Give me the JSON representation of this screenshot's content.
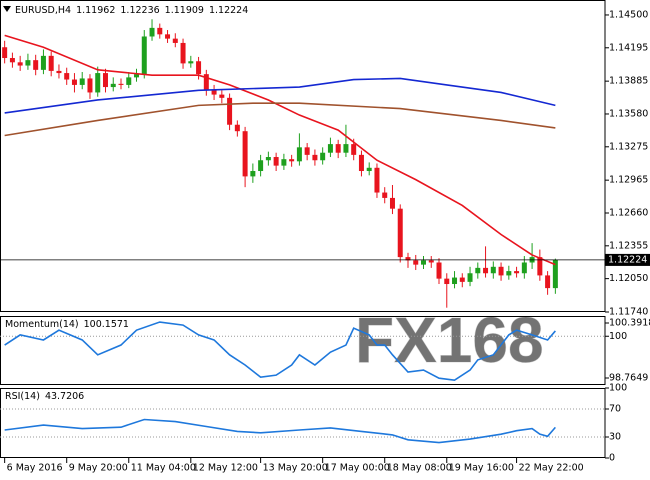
{
  "chart_data": [
    {
      "type": "candlestick",
      "title": "EURUSD,H4",
      "open": [
        1.142,
        1.141,
        1.1406,
        1.1403,
        1.1408,
        1.1399,
        1.1412,
        1.1398,
        1.1396,
        1.139,
        1.1385,
        1.1391,
        1.1378,
        1.1396,
        1.1383,
        1.1386,
        1.1385,
        1.1392,
        1.1395,
        1.143,
        1.1438,
        1.1432,
        1.1428,
        1.1424,
        1.1405,
        1.1407,
        1.1395,
        1.138,
        1.1376,
        1.1373,
        1.1348,
        1.1342,
        1.13,
        1.1305,
        1.1315,
        1.1318,
        1.131,
        1.1316,
        1.1314,
        1.1327,
        1.132,
        1.1315,
        1.1322,
        1.133,
        1.1322,
        1.133,
        1.132,
        1.1305,
        1.1308,
        1.1285,
        1.128,
        1.127,
        1.1225,
        1.1222,
        1.1218,
        1.1222,
        1.122,
        1.1205,
        1.12,
        1.1206,
        1.1202,
        1.121,
        1.1215,
        1.121,
        1.1216,
        1.1208,
        1.1212,
        1.121,
        1.122,
        1.1225,
        1.1208,
        1.11962
      ],
      "high": [
        1.1426,
        1.1415,
        1.1412,
        1.1414,
        1.1413,
        1.1418,
        1.1416,
        1.1404,
        1.1401,
        1.1396,
        1.1397,
        1.1395,
        1.1402,
        1.14,
        1.1392,
        1.1391,
        1.1397,
        1.14,
        1.1436,
        1.1446,
        1.1442,
        1.1436,
        1.1433,
        1.1428,
        1.1412,
        1.1411,
        1.1399,
        1.1385,
        1.138,
        1.1377,
        1.1352,
        1.1346,
        1.1312,
        1.132,
        1.1323,
        1.1322,
        1.1321,
        1.132,
        1.134,
        1.1331,
        1.1325,
        1.1327,
        1.1336,
        1.1334,
        1.1348,
        1.1335,
        1.1324,
        1.1313,
        1.1312,
        1.129,
        1.1292,
        1.1274,
        1.1229,
        1.1227,
        1.1226,
        1.1226,
        1.1224,
        1.121,
        1.1212,
        1.121,
        1.1216,
        1.122,
        1.1235,
        1.1221,
        1.122,
        1.1217,
        1.1216,
        1.1226,
        1.1238,
        1.1232,
        1.1212,
        1.12236
      ],
      "low": [
        1.1405,
        1.1401,
        1.1398,
        1.1399,
        1.1394,
        1.1395,
        1.1393,
        1.1391,
        1.1385,
        1.1378,
        1.1381,
        1.1372,
        1.1374,
        1.1378,
        1.1379,
        1.1381,
        1.1382,
        1.1388,
        1.1391,
        1.1426,
        1.1428,
        1.1424,
        1.142,
        1.14,
        1.1401,
        1.139,
        1.1375,
        1.1371,
        1.1368,
        1.1343,
        1.1337,
        1.129,
        1.1294,
        1.13,
        1.131,
        1.1305,
        1.1306,
        1.1309,
        1.131,
        1.1315,
        1.131,
        1.1311,
        1.1318,
        1.1317,
        1.1318,
        1.1315,
        1.13,
        1.1301,
        1.128,
        1.1275,
        1.1265,
        1.122,
        1.1215,
        1.1213,
        1.1214,
        1.1215,
        1.12,
        1.1178,
        1.1196,
        1.1197,
        1.1198,
        1.1205,
        1.1206,
        1.1205,
        1.1203,
        1.1204,
        1.1206,
        1.1205,
        1.1214,
        1.1203,
        1.119,
        1.11909
      ],
      "close": [
        1.141,
        1.1406,
        1.1403,
        1.1408,
        1.1399,
        1.1412,
        1.1398,
        1.1396,
        1.139,
        1.1385,
        1.1391,
        1.1378,
        1.1396,
        1.1383,
        1.1386,
        1.1385,
        1.1392,
        1.1395,
        1.143,
        1.1438,
        1.1432,
        1.1428,
        1.1424,
        1.1405,
        1.1407,
        1.1395,
        1.138,
        1.1376,
        1.1373,
        1.1348,
        1.1342,
        1.13,
        1.1305,
        1.1315,
        1.1318,
        1.131,
        1.1316,
        1.1314,
        1.1327,
        1.132,
        1.1315,
        1.1322,
        1.133,
        1.1322,
        1.133,
        1.132,
        1.1305,
        1.1308,
        1.1285,
        1.128,
        1.127,
        1.1225,
        1.1222,
        1.1218,
        1.1222,
        1.122,
        1.1205,
        1.12,
        1.1206,
        1.1202,
        1.121,
        1.1215,
        1.121,
        1.1216,
        1.1208,
        1.1212,
        1.121,
        1.122,
        1.1225,
        1.1208,
        1.11962,
        1.12224
      ],
      "up_color": "#1ea01e",
      "down_color": "#e8141e",
      "lines": [
        {
          "color": "#e8141e",
          "x": [
            0,
            5,
            12,
            19,
            25,
            29,
            34,
            38,
            43,
            48,
            53,
            59,
            64,
            68,
            71
          ],
          "values": [
            1.1431,
            1.142,
            1.1399,
            1.1394,
            1.1394,
            1.1385,
            1.1371,
            1.1357,
            1.1343,
            1.1315,
            1.1297,
            1.1273,
            1.1246,
            1.1227,
            1.1218
          ]
        },
        {
          "color": "#1428d2",
          "x": [
            0,
            12,
            25,
            38,
            45,
            51,
            57,
            64,
            71
          ],
          "values": [
            1.1359,
            1.1371,
            1.138,
            1.1383,
            1.139,
            1.1391,
            1.1385,
            1.1378,
            1.1366
          ]
        },
        {
          "color": "#a0522d",
          "x": [
            0,
            12,
            25,
            32,
            38,
            51,
            64,
            71
          ],
          "values": [
            1.1338,
            1.1352,
            1.1366,
            1.1368,
            1.1368,
            1.1363,
            1.1352,
            1.1345
          ]
        }
      ],
      "current_price_line": true,
      "xlim": [
        -0.6,
        77.4
      ],
      "ylim": [
        1.1174,
        1.14639
      ],
      "yticks": [
        {
          "value": 1.145,
          "label": "1.14500"
        },
        1.14195,
        1.13885,
        {
          "value": 1.1358,
          "label": "1.13580"
        },
        1.13275,
        1.12965,
        {
          "value": 1.1266,
          "label": "1.12660"
        },
        1.12355,
        {
          "value": 1.1205,
          "label": "1.12050"
        },
        {
          "value": 1.1174,
          "label": "1.11740"
        }
      ]
    },
    {
      "type": "line",
      "name": "Momentum(14)",
      "color": "#1e78dc",
      "x": [
        0,
        2,
        5,
        7,
        10,
        12,
        15,
        17,
        20,
        23,
        25,
        27,
        29,
        31,
        33,
        35,
        37,
        38,
        40,
        42,
        44,
        45,
        47,
        48,
        49,
        50,
        52,
        54,
        56,
        58,
        60,
        61,
        63,
        65,
        66,
        68,
        70,
        71
      ],
      "values": [
        99.74,
        100.04,
        99.89,
        100.18,
        99.89,
        99.45,
        99.74,
        100.18,
        100.42,
        100.33,
        100.04,
        99.89,
        99.45,
        99.15,
        98.79,
        98.85,
        99.15,
        99.45,
        99.15,
        99.53,
        99.74,
        100.24,
        100.04,
        99.74,
        99.74,
        99.45,
        98.94,
        99.0,
        98.76,
        98.7,
        99.0,
        99.3,
        99.45,
        100.04,
        100.18,
        100.04,
        99.89,
        100.1571
      ],
      "levels": [
        100
      ],
      "xlim": [
        -0.6,
        77.4
      ],
      "ylim": [
        98.558,
        100.599
      ],
      "yticks": [
        100.3918,
        100,
        98.7649
      ]
    },
    {
      "type": "line",
      "name": "RSI(14)",
      "color": "#1e78dc",
      "x": [
        0,
        5,
        10,
        15,
        18,
        22,
        26,
        30,
        33,
        38,
        42,
        46,
        50,
        52,
        56,
        60,
        64,
        66,
        68,
        69,
        70,
        71
      ],
      "values": [
        40,
        47,
        42,
        44,
        55,
        52,
        45,
        38,
        36,
        40,
        43,
        38,
        33,
        26,
        22,
        27,
        34,
        39,
        42,
        34,
        31,
        43.7206
      ],
      "levels": [
        70,
        30
      ],
      "xlim": [
        -0.6,
        77.4
      ],
      "ylim": [
        0,
        100
      ],
      "yticks": [
        100,
        70,
        30,
        0
      ],
      "xticks": [
        {
          "value": 0,
          "label": "6 May 2016"
        },
        {
          "value": 8,
          "label": "9 May 20:00"
        },
        {
          "value": 16,
          "label": "11 May 04:00"
        },
        {
          "value": 24,
          "label": "12 May 12:00"
        },
        {
          "value": 33,
          "label": "13 May 20:00"
        },
        {
          "value": 41,
          "label": "17 May 00:00"
        },
        {
          "value": 49,
          "label": "18 May 08:00"
        },
        {
          "value": 57,
          "label": "19 May 16:00"
        },
        {
          "value": 66,
          "label": "22 May 22:00"
        }
      ]
    }
  ],
  "watermark": "FX168"
}
